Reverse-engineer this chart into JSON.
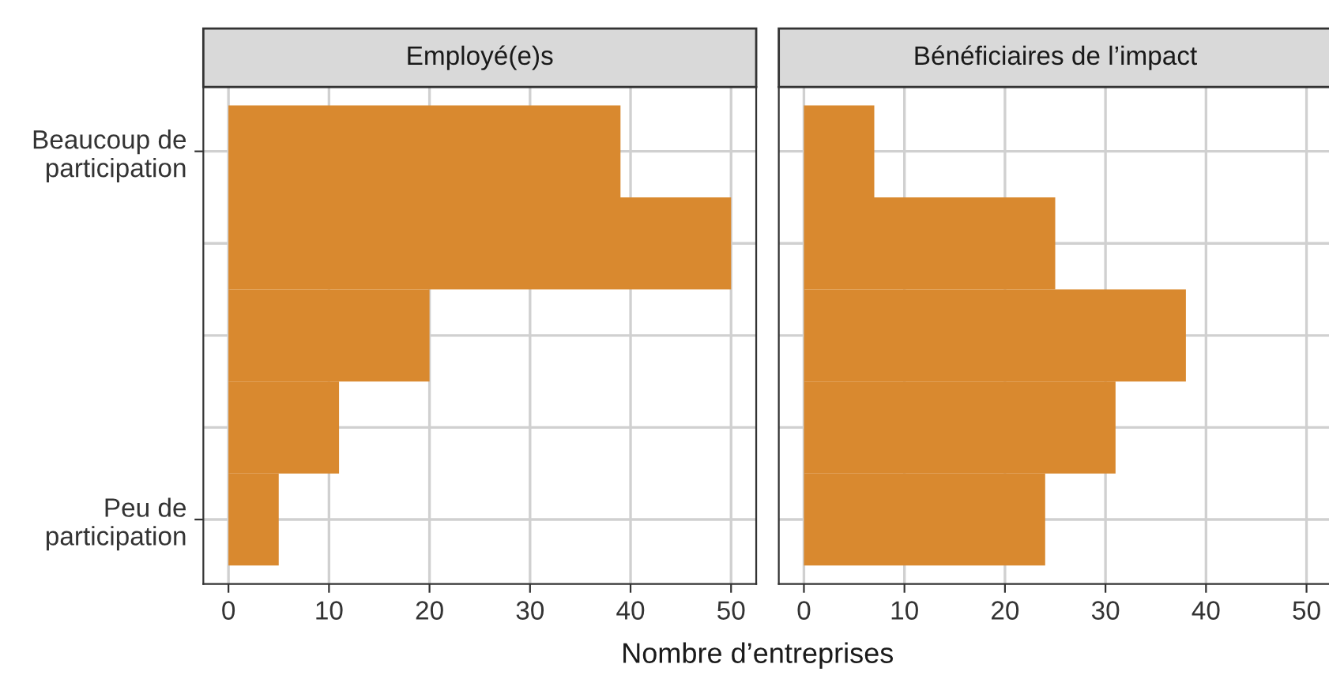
{
  "chart_data": [
    {
      "type": "bar",
      "orientation": "horizontal",
      "title": "Employé(e)s",
      "xlabel": "Nombre d’entreprises",
      "categories": [
        "Beaucoup de\nparticipation",
        null,
        null,
        null,
        "Peu de\nparticipation"
      ],
      "values": [
        39,
        50,
        20,
        11,
        5
      ],
      "color": "#d9892f",
      "xlim": [
        -2.5,
        52.5
      ],
      "xticks": [
        0,
        10,
        20,
        30,
        40,
        50
      ],
      "grid": true
    },
    {
      "type": "bar",
      "orientation": "horizontal",
      "title": "Bénéficiaires de l’impact",
      "categories": [
        null,
        null,
        null,
        null,
        null
      ],
      "values": [
        7,
        25,
        38,
        31,
        24
      ],
      "color": "#d9892f",
      "xlim": [
        -2.5,
        52.5
      ],
      "xticks": [
        0,
        10,
        20,
        30,
        40,
        50
      ],
      "grid": true,
      "tick_labels": "x"
    }
  ]
}
